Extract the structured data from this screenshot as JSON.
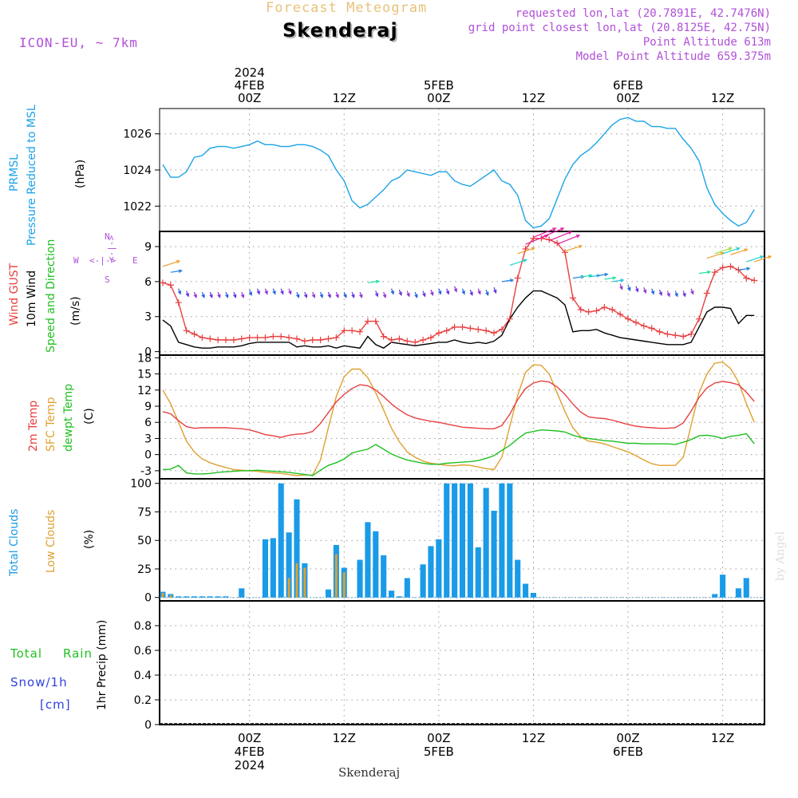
{
  "header": {
    "forecast_title": "Forecast Meteogram",
    "location": "Skenderaj",
    "model": "ICON-EU, ~ 7km",
    "requested": "requested lon,lat (20.7891E, 42.7476N)",
    "gridpoint": "grid point closest lon,lat (20.8125E, 42.75N)",
    "point_altitude": "Point Altitude 613m",
    "model_altitude": "Model Point Altitude 659.375m",
    "footer_location": "Skenderaj",
    "watermark": "by Angel"
  },
  "time_axis": {
    "top_labels": [
      {
        "hour": 0,
        "lines": [
          "2024",
          "4FEB",
          "00Z"
        ]
      },
      {
        "hour": 12,
        "lines": [
          "12Z"
        ]
      },
      {
        "hour": 24,
        "lines": [
          "5FEB",
          "00Z"
        ]
      },
      {
        "hour": 36,
        "lines": [
          "12Z"
        ]
      },
      {
        "hour": 48,
        "lines": [
          "6FEB",
          "00Z"
        ]
      },
      {
        "hour": 60,
        "lines": [
          "12Z"
        ]
      }
    ],
    "bottom_labels": [
      {
        "hour": 0,
        "lines": [
          "00Z",
          "4FEB",
          "2024"
        ]
      },
      {
        "hour": 12,
        "lines": [
          "12Z"
        ]
      },
      {
        "hour": 24,
        "lines": [
          "00Z",
          "5FEB"
        ]
      },
      {
        "hour": 36,
        "lines": [
          "12Z"
        ]
      },
      {
        "hour": 48,
        "lines": [
          "00Z",
          "6FEB"
        ]
      },
      {
        "hour": 60,
        "lines": [
          "12Z"
        ]
      }
    ]
  },
  "labels": {
    "p_prmsl": "PRMSL",
    "p_pressure": "Pressure Reduced to MSL",
    "p_unit": "(hPa)",
    "w_gust": "Wind GUST",
    "w_10m": "10m Wind",
    "w_speed": "Speed and Direction",
    "w_unit": "(m/s)",
    "compass_n": "N",
    "compass_w": "W",
    "compass_e": "E",
    "compass_s": "S",
    "compass_arrows_h": "<-|->",
    "compass_arrows_v": "<-|->",
    "t_2m": "2m Temp",
    "t_sfc": "SFC Temp",
    "t_dew": "dewpt Temp",
    "t_unit": "(C)",
    "c_total": "Total Clouds",
    "c_low": "Low Clouds",
    "c_unit": "(%)",
    "r_total": "Total",
    "r_rain": "Rain",
    "r_snow": "Snow/1h",
    "r_cm": "[cm]",
    "r_precip": "1hr Precip (mm)"
  },
  "colors": {
    "pressure": "#1aa3e8",
    "gust": "#e84040",
    "wind": "#000000",
    "t2m": "#e84040",
    "sfc": "#e0a030",
    "dew": "#20c020",
    "total_clouds": "#1a9be8",
    "low_clouds": "#e0a030",
    "rain_label": "#20c020",
    "snow_label": "#3040e0",
    "purple": "#b050d8"
  },
  "chart_data": [
    {
      "type": "line",
      "title": "PRMSL Pressure Reduced to MSL",
      "ylabel": "(hPa)",
      "ylim": [
        1020.6,
        1027.4
      ],
      "yticks": [
        1022,
        1024,
        1026
      ],
      "x": [
        -11,
        -10,
        -9,
        -8,
        -7,
        -6,
        -5,
        -4,
        -3,
        -2,
        -1,
        0,
        1,
        2,
        3,
        4,
        5,
        6,
        7,
        8,
        9,
        10,
        11,
        12,
        13,
        14,
        15,
        16,
        17,
        18,
        19,
        20,
        21,
        22,
        23,
        24,
        25,
        26,
        27,
        28,
        29,
        30,
        31,
        32,
        33,
        34,
        35,
        36,
        37,
        38,
        39,
        40,
        41,
        42,
        43,
        44,
        45,
        46,
        47,
        48,
        49,
        50,
        51,
        52,
        53,
        54,
        55,
        56,
        57,
        58,
        59,
        60,
        61,
        62,
        63,
        64
      ],
      "series": [
        {
          "name": "PRMSL",
          "values": [
            1024.3,
            1023.6,
            1023.6,
            1023.9,
            1024.7,
            1024.8,
            1025.2,
            1025.3,
            1025.3,
            1025.2,
            1025.3,
            1025.4,
            1025.6,
            1025.4,
            1025.4,
            1025.3,
            1025.3,
            1025.4,
            1025.4,
            1025.3,
            1025.1,
            1024.8,
            1024.0,
            1023.4,
            1022.3,
            1021.9,
            1022.1,
            1022.5,
            1022.9,
            1023.4,
            1023.6,
            1024.0,
            1023.9,
            1023.8,
            1023.7,
            1023.9,
            1023.9,
            1023.4,
            1023.2,
            1023.1,
            1023.4,
            1023.7,
            1024.0,
            1023.4,
            1023.2,
            1022.6,
            1021.2,
            1020.8,
            1020.9,
            1021.3,
            1022.4,
            1023.5,
            1024.3,
            1024.8,
            1025.1,
            1025.5,
            1026.0,
            1026.5,
            1026.8,
            1026.9,
            1026.7,
            1026.7,
            1026.4,
            1026.4,
            1026.3,
            1026.3,
            1025.7,
            1025.2,
            1024.5,
            1023.0,
            1022.1,
            1021.6,
            1021.2,
            1020.9,
            1021.1,
            1021.8
          ]
        }
      ]
    },
    {
      "type": "line",
      "title": "Wind GUST / 10m Wind Speed and Direction",
      "ylabel": "(m/s)",
      "ylim": [
        -0.3,
        10.3
      ],
      "yticks": [
        0,
        3,
        6,
        9
      ],
      "x": [
        -11,
        -10,
        -9,
        -8,
        -7,
        -6,
        -5,
        -4,
        -3,
        -2,
        -1,
        0,
        1,
        2,
        3,
        4,
        5,
        6,
        7,
        8,
        9,
        10,
        11,
        12,
        13,
        14,
        15,
        16,
        17,
        18,
        19,
        20,
        21,
        22,
        23,
        24,
        25,
        26,
        27,
        28,
        29,
        30,
        31,
        32,
        33,
        34,
        35,
        36,
        37,
        38,
        39,
        40,
        41,
        42,
        43,
        44,
        45,
        46,
        47,
        48,
        49,
        50,
        51,
        52,
        53,
        54,
        55,
        56,
        57,
        58,
        59,
        60,
        61,
        62,
        63,
        64
      ],
      "series": [
        {
          "name": "Wind GUST",
          "values": [
            5.9,
            5.7,
            4.2,
            1.8,
            1.5,
            1.2,
            1.1,
            1.0,
            1.0,
            1.0,
            1.1,
            1.2,
            1.2,
            1.2,
            1.3,
            1.3,
            1.2,
            1.1,
            0.9,
            1.0,
            1.0,
            1.1,
            1.2,
            1.8,
            1.8,
            1.7,
            2.6,
            2.6,
            1.3,
            1.0,
            1.1,
            0.9,
            0.8,
            1.0,
            1.2,
            1.6,
            1.8,
            2.1,
            2.1,
            2.0,
            1.9,
            1.8,
            1.6,
            1.9,
            2.8,
            6.3,
            8.8,
            9.7,
            9.7,
            9.6,
            9.3,
            8.5,
            4.6,
            3.6,
            3.4,
            3.5,
            3.8,
            3.6,
            3.2,
            2.8,
            2.5,
            2.2,
            2.0,
            1.7,
            1.5,
            1.4,
            1.3,
            1.5,
            2.8,
            5.0,
            6.8,
            7.2,
            7.3,
            7.0,
            6.3,
            6.1
          ]
        },
        {
          "name": "10m Wind",
          "values": [
            2.7,
            2.2,
            0.8,
            0.6,
            0.4,
            0.3,
            0.3,
            0.4,
            0.4,
            0.4,
            0.5,
            0.7,
            0.8,
            0.8,
            0.8,
            0.8,
            0.8,
            0.4,
            0.5,
            0.4,
            0.4,
            0.5,
            0.3,
            0.5,
            0.4,
            0.3,
            1.3,
            0.6,
            0.3,
            0.8,
            0.7,
            0.6,
            0.5,
            0.6,
            0.7,
            0.8,
            0.8,
            1.0,
            0.8,
            0.7,
            0.8,
            0.7,
            0.9,
            1.4,
            2.8,
            3.8,
            4.6,
            5.2,
            5.2,
            4.9,
            4.6,
            4.0,
            1.7,
            1.8,
            1.8,
            1.9,
            1.6,
            1.4,
            1.2,
            1.1,
            1.0,
            0.9,
            0.8,
            0.7,
            0.6,
            0.6,
            0.6,
            0.8,
            2.1,
            3.4,
            3.8,
            3.8,
            3.7,
            2.4,
            3.1,
            3.1
          ]
        }
      ]
    },
    {
      "type": "line",
      "title": "2m Temp / SFC Temp / dewpt Temp",
      "ylabel": "(C)",
      "ylim": [
        -4.5,
        18.5
      ],
      "yticks": [
        -3,
        0,
        3,
        6,
        9,
        12,
        15,
        18
      ],
      "x": [
        -11,
        -10,
        -9,
        -8,
        -7,
        -6,
        -5,
        -4,
        -3,
        -2,
        -1,
        0,
        1,
        2,
        3,
        4,
        5,
        6,
        7,
        8,
        9,
        10,
        11,
        12,
        13,
        14,
        15,
        16,
        17,
        18,
        19,
        20,
        21,
        22,
        23,
        24,
        25,
        26,
        27,
        28,
        29,
        30,
        31,
        32,
        33,
        34,
        35,
        36,
        37,
        38,
        39,
        40,
        41,
        42,
        43,
        44,
        45,
        46,
        47,
        48,
        49,
        50,
        51,
        52,
        53,
        54,
        55,
        56,
        57,
        58,
        59,
        60,
        61,
        62,
        63,
        64
      ],
      "series": [
        {
          "name": "2m Temp",
          "values": [
            8.0,
            7.6,
            6.3,
            5.2,
            4.9,
            5.0,
            5.0,
            5.0,
            5.0,
            4.9,
            4.8,
            4.6,
            4.2,
            3.7,
            3.5,
            3.2,
            3.6,
            3.8,
            3.9,
            4.3,
            5.8,
            7.8,
            9.8,
            11.2,
            12.3,
            13.0,
            12.8,
            12.0,
            10.8,
            9.4,
            8.3,
            7.4,
            6.8,
            6.5,
            6.2,
            6.0,
            5.7,
            5.4,
            5.1,
            5.0,
            4.9,
            4.8,
            4.8,
            5.4,
            7.5,
            10.2,
            12.3,
            13.3,
            13.7,
            13.5,
            12.6,
            11.2,
            9.4,
            7.9,
            7.0,
            6.8,
            6.7,
            6.4,
            6.0,
            5.6,
            5.3,
            5.1,
            5.0,
            4.9,
            4.9,
            5.0,
            5.9,
            8.1,
            10.6,
            12.4,
            13.3,
            13.6,
            13.4,
            13.0,
            11.6,
            9.9
          ]
        },
        {
          "name": "SFC Temp",
          "values": [
            12.0,
            9.5,
            6.0,
            2.5,
            0.5,
            -0.8,
            -1.5,
            -2.0,
            -2.4,
            -2.8,
            -2.9,
            -3.0,
            -3.1,
            -3.3,
            -3.4,
            -3.5,
            -3.7,
            -3.9,
            -3.8,
            -3.8,
            -1.0,
            5.0,
            10.8,
            14.5,
            15.9,
            15.9,
            14.3,
            11.5,
            8.3,
            4.9,
            2.4,
            0.5,
            -0.5,
            -1.2,
            -1.6,
            -1.8,
            -2.0,
            -2.1,
            -1.9,
            -2.0,
            -2.3,
            -2.6,
            -2.8,
            -0.5,
            5.2,
            11.0,
            15.3,
            16.7,
            16.6,
            15.0,
            11.5,
            8.0,
            5.0,
            3.3,
            2.5,
            2.3,
            2.0,
            1.5,
            1.0,
            0.5,
            -0.2,
            -1.0,
            -1.7,
            -2.0,
            -2.0,
            -2.0,
            -0.5,
            5.5,
            11.5,
            15.0,
            17.0,
            17.2,
            16.0,
            13.5,
            9.5,
            6.0
          ]
        },
        {
          "name": "dewpt Temp",
          "values": [
            -2.8,
            -2.7,
            -2.0,
            -3.4,
            -3.6,
            -3.6,
            -3.5,
            -3.3,
            -3.2,
            -3.1,
            -3.0,
            -3.0,
            -2.9,
            -3.0,
            -3.1,
            -3.2,
            -3.3,
            -3.5,
            -3.7,
            -3.9,
            -2.9,
            -2.0,
            -1.5,
            -0.8,
            0.3,
            0.7,
            1.0,
            1.9,
            1.0,
            0.1,
            -0.5,
            -1.0,
            -1.3,
            -1.6,
            -1.8,
            -1.8,
            -1.6,
            -1.5,
            -1.4,
            -1.3,
            -1.1,
            -0.7,
            -0.2,
            0.8,
            1.7,
            2.9,
            4.0,
            4.3,
            4.6,
            4.5,
            4.4,
            4.2,
            3.6,
            3.2,
            3.0,
            2.8,
            2.6,
            2.5,
            2.3,
            2.1,
            2.1,
            2.0,
            2.0,
            2.0,
            2.0,
            1.9,
            2.3,
            2.8,
            3.5,
            3.6,
            3.4,
            3.0,
            3.4,
            3.6,
            3.9,
            2.0
          ]
        }
      ]
    },
    {
      "type": "bar",
      "title": "Total Clouds / Low Clouds",
      "ylabel": "(%)",
      "ylim": [
        -3,
        104
      ],
      "yticks": [
        0,
        25,
        50,
        75,
        100
      ],
      "x": [
        -11,
        -10,
        -9,
        -8,
        -7,
        -6,
        -5,
        -4,
        -3,
        -2,
        -1,
        0,
        1,
        2,
        3,
        4,
        5,
        6,
        7,
        8,
        9,
        10,
        11,
        12,
        13,
        14,
        15,
        16,
        17,
        18,
        19,
        20,
        21,
        22,
        23,
        24,
        25,
        26,
        27,
        28,
        29,
        30,
        31,
        32,
        33,
        34,
        35,
        36,
        37,
        38,
        39,
        40,
        41,
        42,
        43,
        44,
        45,
        46,
        47,
        48,
        49,
        50,
        51,
        52,
        53,
        54,
        55,
        56,
        57,
        58,
        59,
        60,
        61,
        62,
        63,
        64
      ],
      "series": [
        {
          "name": "Total Clouds",
          "values": [
            5,
            3,
            1,
            1,
            1,
            1,
            1,
            1,
            1,
            0,
            8,
            0,
            0,
            51,
            52,
            100,
            57,
            86,
            30,
            0,
            0,
            7,
            46,
            26,
            0,
            33,
            66,
            58,
            37,
            6,
            1,
            17,
            0,
            29,
            45,
            51,
            100,
            100,
            100,
            100,
            44,
            96,
            76,
            100,
            100,
            33,
            12,
            4,
            0,
            0,
            0,
            0,
            0,
            0,
            0,
            0,
            0,
            0,
            0,
            0,
            0,
            0,
            0,
            0,
            0,
            0,
            0,
            0,
            0,
            0,
            3,
            20,
            0,
            8,
            17,
            0
          ]
        },
        {
          "name": "Low Clouds",
          "values": [
            4,
            2,
            0,
            0,
            0,
            0,
            0,
            0,
            0,
            0,
            0,
            0,
            0,
            0,
            0,
            0,
            17,
            30,
            26,
            0,
            0,
            0,
            38,
            22,
            0,
            0,
            0,
            0,
            0,
            0,
            0,
            0,
            0,
            0,
            0,
            0,
            0,
            0,
            0,
            0,
            0,
            0,
            0,
            0,
            0,
            0,
            0,
            0,
            0,
            0,
            0,
            0,
            0,
            0,
            0,
            0,
            0,
            0,
            0,
            0,
            0,
            0,
            0,
            0,
            0,
            0,
            0,
            0,
            0,
            0,
            0,
            0,
            0,
            0,
            0,
            0
          ]
        }
      ]
    },
    {
      "type": "bar",
      "title": "Total Rain / Snow 1hr Precip",
      "ylabel": "1hr Precip (mm)",
      "ylim": [
        0,
        1
      ],
      "yticks": [
        0,
        0.2,
        0.4,
        0.6,
        0.8
      ],
      "ytick_labels": [
        "0",
        "0.2",
        "0.4",
        "0.6",
        "0.8"
      ],
      "series": [
        {
          "name": "Total Rain",
          "values": []
        }
      ]
    }
  ]
}
